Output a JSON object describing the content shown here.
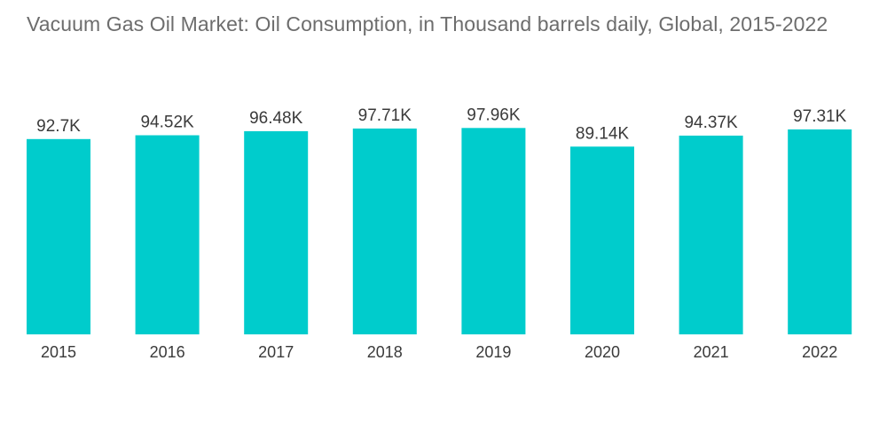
{
  "chart_data": {
    "type": "bar",
    "title": "Vacuum Gas Oil Market: Oil Consumption, in Thousand barrels daily, Global, 2015-2022",
    "categories": [
      "2015",
      "2016",
      "2017",
      "2018",
      "2019",
      "2020",
      "2021",
      "2022"
    ],
    "values": [
      92.7,
      94.52,
      96.48,
      97.71,
      97.96,
      89.14,
      94.37,
      97.31
    ],
    "value_labels": [
      "92.7K",
      "94.52K",
      "96.48K",
      "97.71K",
      "97.96K",
      "89.14K",
      "94.37K",
      "97.31K"
    ],
    "xlabel": "",
    "ylabel": "",
    "ylim": [
      0,
      98
    ],
    "grid": false,
    "legend": "none",
    "bar_color": "#00cccc"
  }
}
